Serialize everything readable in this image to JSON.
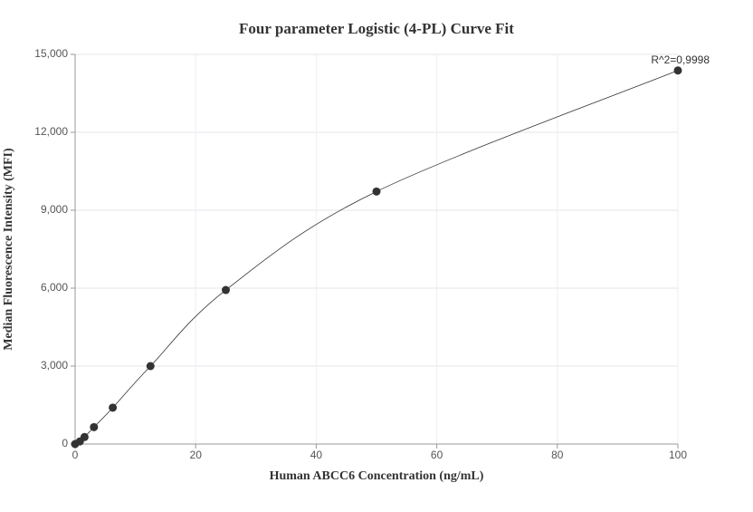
{
  "chart_data": {
    "type": "scatter",
    "title": "Four parameter Logistic (4-PL) Curve Fit",
    "x_label": "Human ABCC6 Concentration (ng/mL)",
    "y_label": "Median Fluorescence Intensity (MFI)",
    "annotation": "R^2=0,9998",
    "x": [
      0,
      0.78,
      1.56,
      3.125,
      6.25,
      12.5,
      25,
      50,
      100
    ],
    "series": [
      {
        "color": "#333333",
        "values": [
          0,
          100,
          270,
          650,
          1400,
          3000,
          5930,
          9720,
          14380
        ]
      }
    ],
    "curve_color": "#333333",
    "xlim": [
      0,
      100
    ],
    "xticks": [
      0,
      20,
      40,
      60,
      80,
      100
    ],
    "ylim": [
      0,
      15000
    ],
    "yticks": [
      0,
      {
        "value": 3000,
        "label": "3,000"
      },
      {
        "value": 6000,
        "label": "6,000"
      },
      {
        "value": 9000,
        "label": "9,000"
      },
      {
        "value": 12000,
        "label": "12,000"
      },
      {
        "value": 15000,
        "label": "15,000"
      }
    ],
    "grid": true
  }
}
